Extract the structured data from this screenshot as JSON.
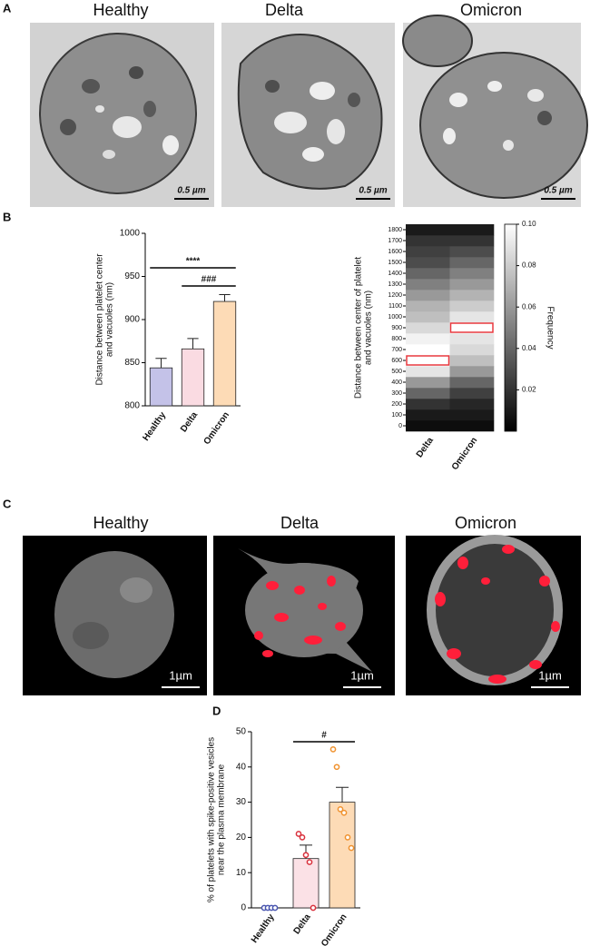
{
  "figure": {
    "panels": [
      "A",
      "B",
      "C",
      "D"
    ],
    "micrographs": {
      "titles": [
        "Healthy",
        "Delta",
        "Omicron"
      ],
      "scale_label": "0.5 µm"
    },
    "fluorescence": {
      "titles": [
        "Healthy",
        "Delta",
        "Omicron"
      ],
      "scale_label": "1µm"
    }
  },
  "chart_data": [
    {
      "type": "bar",
      "categories": [
        "Healthy",
        "Delta",
        "Omicron"
      ],
      "values": [
        844,
        866,
        921
      ],
      "errors": [
        11,
        12,
        8
      ],
      "colors": [
        "#c4c2e8",
        "#fadbe2",
        "#fddbb6"
      ],
      "ylabel": [
        "Distance between platelet center",
        "and vacuoles (nm)"
      ],
      "ylim": [
        800,
        1000
      ],
      "yticks": [
        800,
        850,
        900,
        950,
        1000
      ],
      "annotations": [
        {
          "text": "****",
          "between": [
            "Healthy",
            "Omicron"
          ]
        },
        {
          "text": "###",
          "between": [
            "Delta",
            "Omicron"
          ]
        }
      ]
    },
    {
      "type": "heatmap",
      "categories": [
        "Delta",
        "Omicron"
      ],
      "yticks": [
        0,
        100,
        200,
        300,
        400,
        500,
        600,
        700,
        800,
        900,
        1000,
        1100,
        1200,
        1300,
        1400,
        1500,
        1600,
        1700,
        1800
      ],
      "values": [
        [
          0.005,
          0.01,
          0.02,
          0.04,
          0.06,
          0.09,
          0.1,
          0.1,
          0.095,
          0.085,
          0.075,
          0.07,
          0.06,
          0.05,
          0.04,
          0.03,
          0.025,
          0.02,
          0.01
        ],
        [
          0.005,
          0.01,
          0.015,
          0.025,
          0.04,
          0.06,
          0.075,
          0.085,
          0.09,
          0.1,
          0.09,
          0.08,
          0.07,
          0.06,
          0.05,
          0.04,
          0.03,
          0.02,
          0.01
        ]
      ],
      "ylabel": [
        "Distance between center of platelet",
        "and vacuoles (nm)"
      ],
      "clim": [
        0,
        0.1
      ],
      "cticks": [
        0.02,
        0.04,
        0.06,
        0.08,
        {
          "value": 0.1,
          "label": "0.10"
        }
      ],
      "clabel": "Frequency",
      "highlight": [
        600,
        900
      ],
      "highlight_color": "#e8393f"
    },
    {
      "type": "bar",
      "categories": [
        "Healthy",
        "Delta",
        "Omicron"
      ],
      "values": [
        0,
        14,
        30
      ],
      "errors": [
        0,
        3.8,
        4.2
      ],
      "points": [
        [
          0,
          0,
          0,
          0
        ],
        [
          21,
          20,
          15,
          13,
          0
        ],
        [
          45,
          40,
          28,
          27,
          20,
          17
        ]
      ],
      "point_colors": [
        "#4a56b0",
        "#d9303c",
        "#f0922e"
      ],
      "colors": [
        "#ffffff",
        "#fbe1e6",
        "#fddbb6"
      ],
      "ylabel": [
        "% of platelets with spike-positive vesicles",
        "near the plasma membrane"
      ],
      "ylim": [
        0,
        50
      ],
      "yticks": [
        0,
        10,
        20,
        30,
        40,
        50
      ],
      "annotations": [
        {
          "text": "#",
          "between": [
            "Delta",
            "Omicron"
          ]
        }
      ]
    }
  ]
}
